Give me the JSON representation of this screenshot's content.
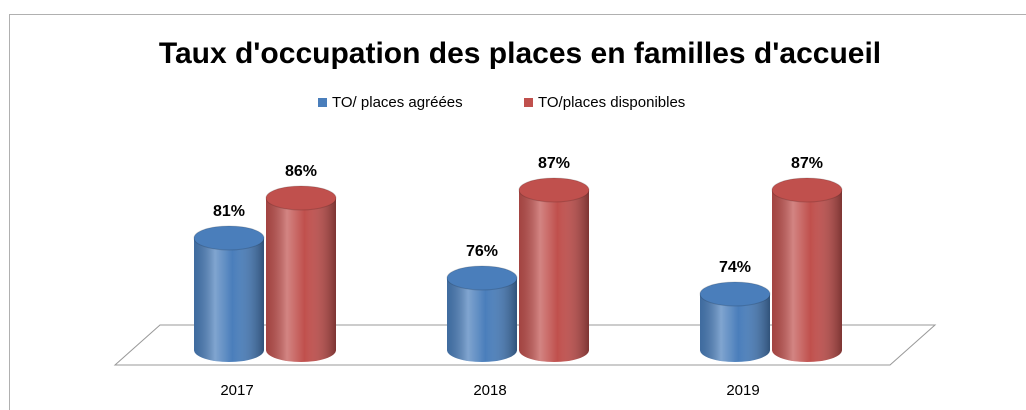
{
  "chart_data": {
    "type": "cylinder-bar",
    "title": "Taux d'occupation des places en familles d'accueil",
    "categories": [
      "2017",
      "2018",
      "2019"
    ],
    "series": [
      {
        "name": "TO/ places agréées",
        "color": "#4a7ebb",
        "values": [
          81,
          76,
          74
        ],
        "value_labels": [
          "81%",
          "76%",
          "74%"
        ]
      },
      {
        "name": "TO/places disponibles",
        "color": "#c0504d",
        "values": [
          86,
          87,
          87
        ],
        "value_labels": [
          "86%",
          "87%",
          "87%"
        ]
      }
    ],
    "ylim": [
      67,
      88
    ],
    "legend": "top"
  }
}
